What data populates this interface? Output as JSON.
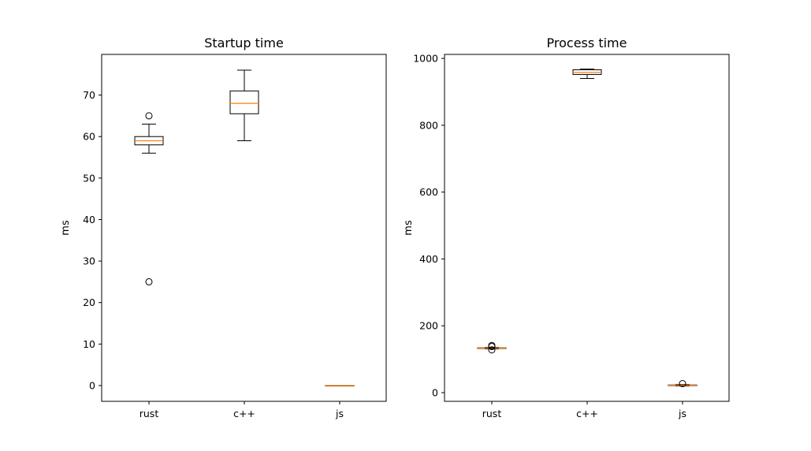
{
  "chart_data": [
    {
      "type": "box",
      "title": "Startup time",
      "xlabel": "",
      "ylabel": "ms",
      "categories": [
        "rust",
        "c++",
        "js"
      ],
      "ylim": [
        -3.8,
        79.8
      ],
      "yticks": [
        0,
        10,
        20,
        30,
        40,
        50,
        60,
        70
      ],
      "grid": false,
      "boxes": [
        {
          "category": "rust",
          "whisker_low": 56,
          "q1": 58,
          "median": 59,
          "q3": 60,
          "whisker_high": 63,
          "outliers": [
            65,
            25
          ]
        },
        {
          "category": "c++",
          "whisker_low": 59,
          "q1": 65.5,
          "median": 68,
          "q3": 71,
          "whisker_high": 76,
          "outliers": []
        },
        {
          "category": "js",
          "whisker_low": 0,
          "q1": 0,
          "median": 0,
          "q3": 0,
          "whisker_high": 0,
          "outliers": []
        }
      ]
    },
    {
      "type": "box",
      "title": "Process time",
      "xlabel": "",
      "ylabel": "ms",
      "categories": [
        "rust",
        "c++",
        "js"
      ],
      "ylim": [
        -26,
        1012
      ],
      "yticks": [
        0,
        200,
        400,
        600,
        800,
        1000
      ],
      "grid": false,
      "boxes": [
        {
          "category": "rust",
          "whisker_low": 131,
          "q1": 132,
          "median": 133,
          "q3": 134,
          "whisker_high": 135,
          "outliers": [
            128,
            138,
            141
          ]
        },
        {
          "category": "c++",
          "whisker_low": 940,
          "q1": 952,
          "median": 958,
          "q3": 966,
          "whisker_high": 968,
          "outliers": []
        },
        {
          "category": "js",
          "whisker_low": 20,
          "q1": 21,
          "median": 22,
          "q3": 23,
          "whisker_high": 24,
          "outliers": [
            27
          ]
        }
      ]
    }
  ],
  "colors": {
    "box_edge": "#000000",
    "median": "#ff7f0e",
    "background": "#ffffff"
  }
}
